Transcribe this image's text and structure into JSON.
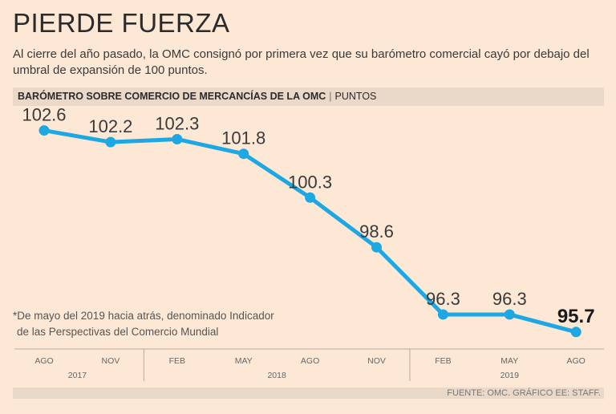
{
  "header": {
    "title": "PIERDE FUERZA",
    "subtitle": "Al cierre del año pasado, la OMC consignó por primera vez que su barómetro comercial cayó por debajo del umbral de expansión de 100 puntos."
  },
  "band": {
    "label": "BARÓMETRO SOBRE COMERCIO DE MERCANCÍAS DE LA OMC",
    "separator": "|",
    "unit": "PUNTOS"
  },
  "footnote": {
    "line1": "*De mayo del 2019 hacia atrás, denominado Indicador",
    "line2": "de las Perspectivas del Comercio Mundial"
  },
  "source": "FUENTE: OMC. GRÁFICO EE: STAFF.",
  "colors": {
    "line": "#1ea8e3",
    "background": "#fde8d6",
    "band": "#ead8c8"
  },
  "chart_data": {
    "type": "line",
    "categories": [
      "AGO",
      "NOV",
      "FEB",
      "MAY",
      "AGO",
      "NOV",
      "FEB",
      "MAY",
      "AGO"
    ],
    "years": [
      {
        "label": "2017",
        "from": 0,
        "to": 1
      },
      {
        "label": "2018",
        "from": 2,
        "to": 5
      },
      {
        "label": "2019",
        "from": 6,
        "to": 8
      }
    ],
    "values": [
      102.6,
      102.2,
      102.3,
      101.8,
      100.3,
      98.6,
      96.3,
      96.3,
      95.7
    ],
    "value_labels": [
      "102.6",
      "102.2",
      "102.3",
      "101.8",
      "100.3",
      "98.6",
      "96.3",
      "96.3",
      "95.7"
    ],
    "highlight_last": true,
    "ylim": [
      95.2,
      103.0
    ],
    "grid": false,
    "title": "",
    "xlabel": "",
    "ylabel": ""
  }
}
